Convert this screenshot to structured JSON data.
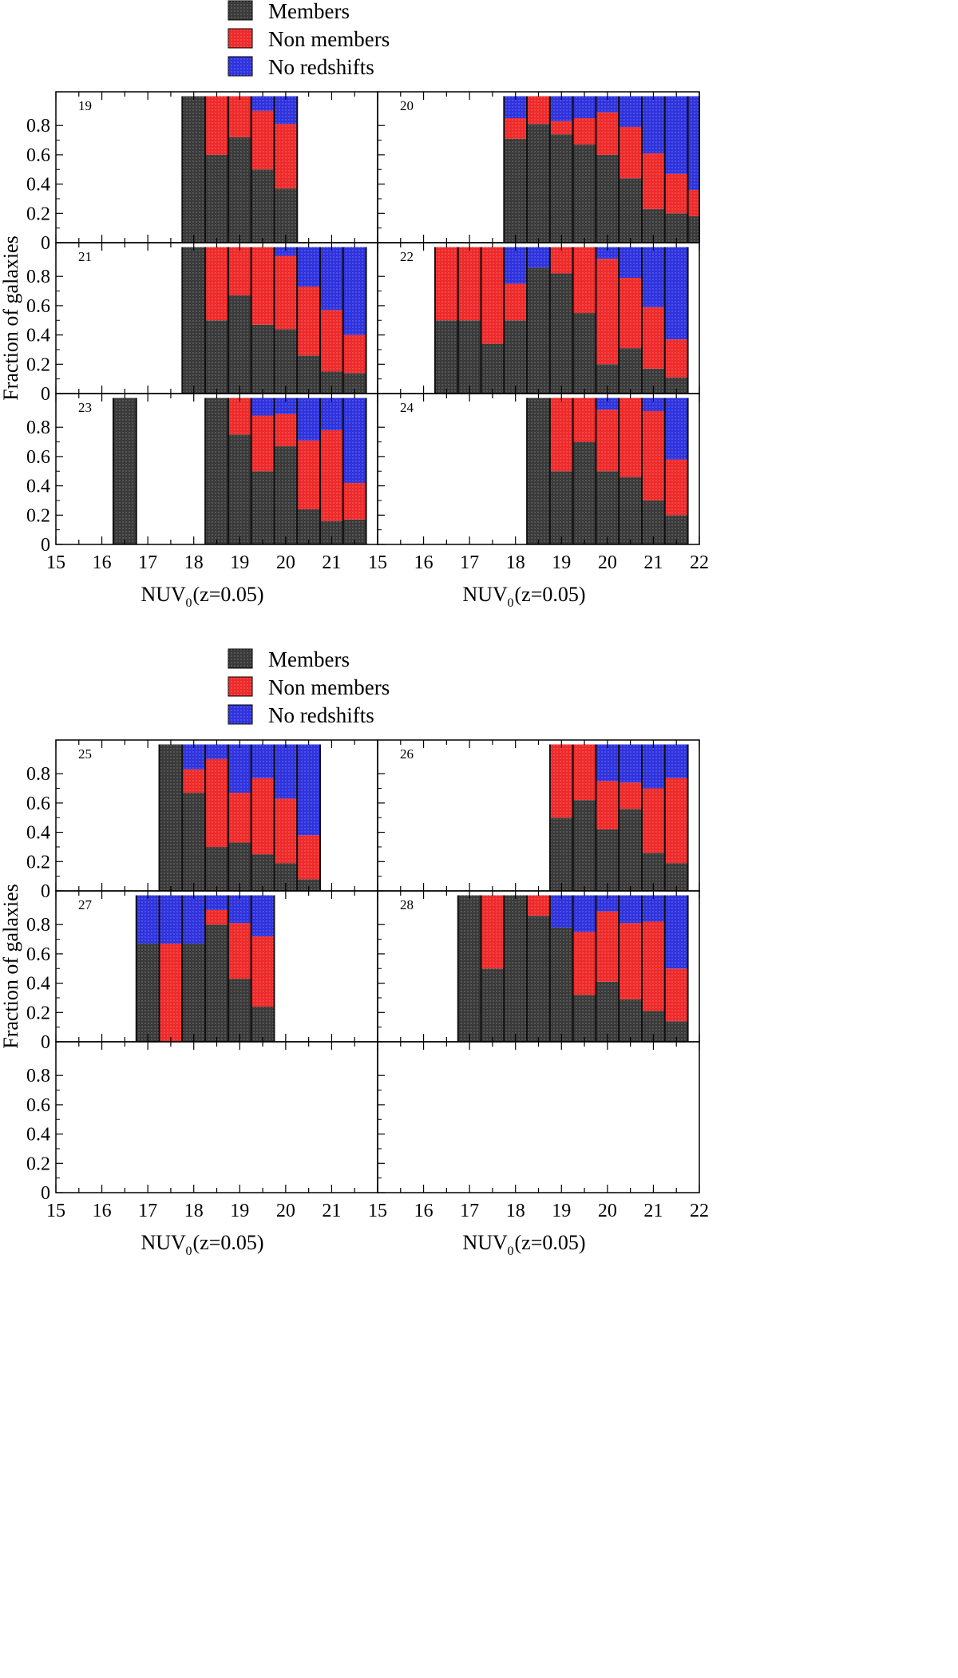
{
  "colors": {
    "members": "#3a3a3a",
    "non_members": "#ee2a2a",
    "no_redshifts": "#2f33dd",
    "axis": "#000000",
    "bar_edge": "#111111"
  },
  "chart_data": {
    "type": "bar",
    "stacked": true,
    "title": "",
    "legend": [
      "Members",
      "Non members",
      "No redshifts"
    ],
    "xlabel": {
      "main": "NUV",
      "sub": "0",
      "suffix": " (z=0.05)"
    },
    "ylabel": "Fraction of galaxies",
    "xlim": [
      15,
      22
    ],
    "ylim": [
      0,
      1
    ],
    "x_ticks": [
      15,
      16,
      17,
      18,
      19,
      20,
      21,
      22
    ],
    "y_ticks": [
      "0",
      "0.2",
      "0.4",
      "0.6",
      "0.8"
    ],
    "figures": [
      {
        "panels": [
          {
            "id": "19",
            "bins": [
              {
                "x0": 17.75,
                "x1": 18.25,
                "m": 1.0,
                "n": 0,
                "r": 0
              },
              {
                "x0": 18.25,
                "x1": 18.75,
                "m": 0.6,
                "n": 0.4,
                "r": 0
              },
              {
                "x0": 18.75,
                "x1": 19.25,
                "m": 0.72,
                "n": 0.28,
                "r": 0
              },
              {
                "x0": 19.25,
                "x1": 19.75,
                "m": 0.5,
                "n": 0.4,
                "r": 0.1
              },
              {
                "x0": 19.75,
                "x1": 20.25,
                "m": 0.37,
                "n": 0.44,
                "r": 0.19
              }
            ]
          },
          {
            "id": "20",
            "bins": [
              {
                "x0": 17.75,
                "x1": 18.25,
                "m": 0.71,
                "n": 0.14,
                "r": 0.15
              },
              {
                "x0": 18.25,
                "x1": 18.75,
                "m": 0.81,
                "n": 0.19,
                "r": 0
              },
              {
                "x0": 18.75,
                "x1": 19.25,
                "m": 0.74,
                "n": 0.09,
                "r": 0.17
              },
              {
                "x0": 19.25,
                "x1": 19.75,
                "m": 0.67,
                "n": 0.18,
                "r": 0.15
              },
              {
                "x0": 19.75,
                "x1": 20.25,
                "m": 0.6,
                "n": 0.29,
                "r": 0.11
              },
              {
                "x0": 20.25,
                "x1": 20.75,
                "m": 0.44,
                "n": 0.35,
                "r": 0.21
              },
              {
                "x0": 20.75,
                "x1": 21.25,
                "m": 0.23,
                "n": 0.38,
                "r": 0.39
              },
              {
                "x0": 21.25,
                "x1": 21.75,
                "m": 0.2,
                "n": 0.27,
                "r": 0.53
              },
              {
                "x0": 21.75,
                "x1": 22.0,
                "m": 0.18,
                "n": 0.18,
                "r": 0.64
              }
            ]
          },
          {
            "id": "21",
            "bins": [
              {
                "x0": 17.75,
                "x1": 18.25,
                "m": 1.0,
                "n": 0,
                "r": 0
              },
              {
                "x0": 18.25,
                "x1": 18.75,
                "m": 0.5,
                "n": 0.5,
                "r": 0
              },
              {
                "x0": 18.75,
                "x1": 19.25,
                "m": 0.67,
                "n": 0.33,
                "r": 0
              },
              {
                "x0": 19.25,
                "x1": 19.75,
                "m": 0.47,
                "n": 0.53,
                "r": 0
              },
              {
                "x0": 19.75,
                "x1": 20.25,
                "m": 0.44,
                "n": 0.5,
                "r": 0.06
              },
              {
                "x0": 20.25,
                "x1": 20.75,
                "m": 0.26,
                "n": 0.47,
                "r": 0.27
              },
              {
                "x0": 20.75,
                "x1": 21.25,
                "m": 0.15,
                "n": 0.42,
                "r": 0.43
              },
              {
                "x0": 21.25,
                "x1": 21.75,
                "m": 0.14,
                "n": 0.26,
                "r": 0.6
              }
            ]
          },
          {
            "id": "22",
            "bins": [
              {
                "x0": 16.25,
                "x1": 16.75,
                "m": 0.5,
                "n": 0.5,
                "r": 0
              },
              {
                "x0": 16.75,
                "x1": 17.25,
                "m": 0.5,
                "n": 0.5,
                "r": 0
              },
              {
                "x0": 17.25,
                "x1": 17.75,
                "m": 0.34,
                "n": 0.66,
                "r": 0
              },
              {
                "x0": 17.75,
                "x1": 18.25,
                "m": 0.5,
                "n": 0.25,
                "r": 0.25
              },
              {
                "x0": 18.25,
                "x1": 18.75,
                "m": 0.86,
                "n": 0,
                "r": 0.14
              },
              {
                "x0": 18.75,
                "x1": 19.25,
                "m": 0.82,
                "n": 0.18,
                "r": 0
              },
              {
                "x0": 19.25,
                "x1": 19.75,
                "m": 0.55,
                "n": 0.45,
                "r": 0
              },
              {
                "x0": 19.75,
                "x1": 20.25,
                "m": 0.2,
                "n": 0.72,
                "r": 0.08
              },
              {
                "x0": 20.25,
                "x1": 20.75,
                "m": 0.31,
                "n": 0.48,
                "r": 0.21
              },
              {
                "x0": 20.75,
                "x1": 21.25,
                "m": 0.17,
                "n": 0.42,
                "r": 0.41
              },
              {
                "x0": 21.25,
                "x1": 21.75,
                "m": 0.11,
                "n": 0.26,
                "r": 0.63
              }
            ]
          },
          {
            "id": "23",
            "bins": [
              {
                "x0": 16.25,
                "x1": 16.75,
                "m": 1.0,
                "n": 0,
                "r": 0
              },
              {
                "x0": 18.25,
                "x1": 18.75,
                "m": 1.0,
                "n": 0,
                "r": 0
              },
              {
                "x0": 18.75,
                "x1": 19.25,
                "m": 0.75,
                "n": 0.25,
                "r": 0
              },
              {
                "x0": 19.25,
                "x1": 19.75,
                "m": 0.5,
                "n": 0.38,
                "r": 0.12
              },
              {
                "x0": 19.75,
                "x1": 20.25,
                "m": 0.67,
                "n": 0.22,
                "r": 0.11
              },
              {
                "x0": 20.25,
                "x1": 20.75,
                "m": 0.24,
                "n": 0.47,
                "r": 0.29
              },
              {
                "x0": 20.75,
                "x1": 21.25,
                "m": 0.16,
                "n": 0.62,
                "r": 0.22
              },
              {
                "x0": 21.25,
                "x1": 21.75,
                "m": 0.17,
                "n": 0.25,
                "r": 0.58
              }
            ]
          },
          {
            "id": "24",
            "bins": [
              {
                "x0": 18.25,
                "x1": 18.75,
                "m": 1.0,
                "n": 0,
                "r": 0
              },
              {
                "x0": 18.75,
                "x1": 19.25,
                "m": 0.5,
                "n": 0.5,
                "r": 0
              },
              {
                "x0": 19.25,
                "x1": 19.75,
                "m": 0.7,
                "n": 0.3,
                "r": 0
              },
              {
                "x0": 19.75,
                "x1": 20.25,
                "m": 0.5,
                "n": 0.42,
                "r": 0.08
              },
              {
                "x0": 20.25,
                "x1": 20.75,
                "m": 0.46,
                "n": 0.54,
                "r": 0
              },
              {
                "x0": 20.75,
                "x1": 21.25,
                "m": 0.3,
                "n": 0.61,
                "r": 0.09
              },
              {
                "x0": 21.25,
                "x1": 21.75,
                "m": 0.2,
                "n": 0.38,
                "r": 0.42
              }
            ]
          }
        ]
      },
      {
        "panels": [
          {
            "id": "25",
            "bins": [
              {
                "x0": 17.25,
                "x1": 17.75,
                "m": 1.0,
                "n": 0,
                "r": 0
              },
              {
                "x0": 17.75,
                "x1": 18.25,
                "m": 0.67,
                "n": 0.16,
                "r": 0.17
              },
              {
                "x0": 18.25,
                "x1": 18.75,
                "m": 0.3,
                "n": 0.6,
                "r": 0.1
              },
              {
                "x0": 18.75,
                "x1": 19.25,
                "m": 0.33,
                "n": 0.34,
                "r": 0.33
              },
              {
                "x0": 19.25,
                "x1": 19.75,
                "m": 0.25,
                "n": 0.52,
                "r": 0.23
              },
              {
                "x0": 19.75,
                "x1": 20.25,
                "m": 0.19,
                "n": 0.44,
                "r": 0.37
              },
              {
                "x0": 20.25,
                "x1": 20.75,
                "m": 0.08,
                "n": 0.3,
                "r": 0.62
              }
            ]
          },
          {
            "id": "26",
            "bins": [
              {
                "x0": 18.75,
                "x1": 19.25,
                "m": 0.5,
                "n": 0.5,
                "r": 0
              },
              {
                "x0": 19.25,
                "x1": 19.75,
                "m": 0.62,
                "n": 0.38,
                "r": 0
              },
              {
                "x0": 19.75,
                "x1": 20.25,
                "m": 0.42,
                "n": 0.33,
                "r": 0.25
              },
              {
                "x0": 20.25,
                "x1": 20.75,
                "m": 0.56,
                "n": 0.18,
                "r": 0.26
              },
              {
                "x0": 20.75,
                "x1": 21.25,
                "m": 0.26,
                "n": 0.44,
                "r": 0.3
              },
              {
                "x0": 21.25,
                "x1": 21.75,
                "m": 0.19,
                "n": 0.58,
                "r": 0.23
              }
            ]
          },
          {
            "id": "27",
            "bins": [
              {
                "x0": 16.75,
                "x1": 17.25,
                "m": 0.67,
                "n": 0,
                "r": 0.33
              },
              {
                "x0": 17.25,
                "x1": 17.75,
                "m": 0,
                "n": 0.67,
                "r": 0.33
              },
              {
                "x0": 17.75,
                "x1": 18.25,
                "m": 0.67,
                "n": 0,
                "r": 0.33
              },
              {
                "x0": 18.25,
                "x1": 18.75,
                "m": 0.8,
                "n": 0.1,
                "r": 0.1
              },
              {
                "x0": 18.75,
                "x1": 19.25,
                "m": 0.43,
                "n": 0.38,
                "r": 0.19
              },
              {
                "x0": 19.25,
                "x1": 19.75,
                "m": 0.24,
                "n": 0.48,
                "r": 0.28
              }
            ]
          },
          {
            "id": "28",
            "bins": [
              {
                "x0": 16.75,
                "x1": 17.25,
                "m": 1.0,
                "n": 0,
                "r": 0
              },
              {
                "x0": 17.25,
                "x1": 17.75,
                "m": 0.5,
                "n": 0.5,
                "r": 0
              },
              {
                "x0": 17.75,
                "x1": 18.25,
                "m": 1.0,
                "n": 0,
                "r": 0
              },
              {
                "x0": 18.25,
                "x1": 18.75,
                "m": 0.86,
                "n": 0.14,
                "r": 0
              },
              {
                "x0": 18.75,
                "x1": 19.25,
                "m": 0.78,
                "n": 0,
                "r": 0.22
              },
              {
                "x0": 19.25,
                "x1": 19.75,
                "m": 0.32,
                "n": 0.43,
                "r": 0.25
              },
              {
                "x0": 19.75,
                "x1": 20.25,
                "m": 0.41,
                "n": 0.48,
                "r": 0.11
              },
              {
                "x0": 20.25,
                "x1": 20.75,
                "m": 0.29,
                "n": 0.52,
                "r": 0.19
              },
              {
                "x0": 20.75,
                "x1": 21.25,
                "m": 0.21,
                "n": 0.61,
                "r": 0.18
              },
              {
                "x0": 21.25,
                "x1": 21.75,
                "m": 0.14,
                "n": 0.36,
                "r": 0.5
              }
            ]
          },
          {
            "id": "",
            "bins": []
          },
          {
            "id": "",
            "bins": []
          }
        ]
      }
    ]
  }
}
